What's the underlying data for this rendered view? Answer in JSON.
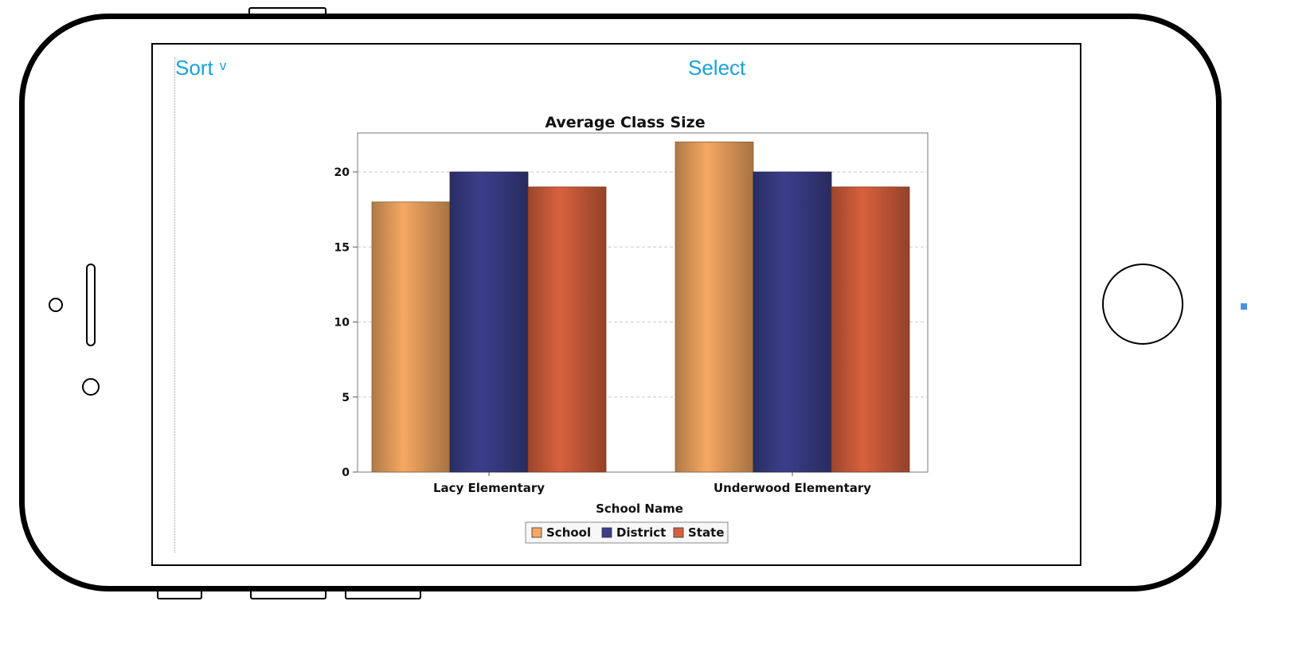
{
  "toolbar": {
    "sort_label": "Sort",
    "sort_chevron": "v",
    "select_label": "Select"
  },
  "colors": {
    "accent": "#1aa0dc",
    "school": "#f5a862",
    "district": "#3b3f8a",
    "state": "#d8613d"
  },
  "chart_data": {
    "type": "bar",
    "title": "Average Class Size",
    "xlabel": "School Name",
    "ylabel": "",
    "categories": [
      "Lacy Elementary",
      "Underwood Elementary"
    ],
    "series": [
      {
        "name": "School",
        "values": [
          18,
          22
        ],
        "color": "#f5a862"
      },
      {
        "name": "District",
        "values": [
          20,
          20
        ],
        "color": "#3b3f8a"
      },
      {
        "name": "State",
        "values": [
          19,
          19
        ],
        "color": "#d8613d"
      }
    ],
    "ylim": [
      0,
      22.6
    ],
    "yticks": [
      0,
      5,
      10,
      15,
      20
    ],
    "grid": true,
    "legend_position": "bottom"
  }
}
